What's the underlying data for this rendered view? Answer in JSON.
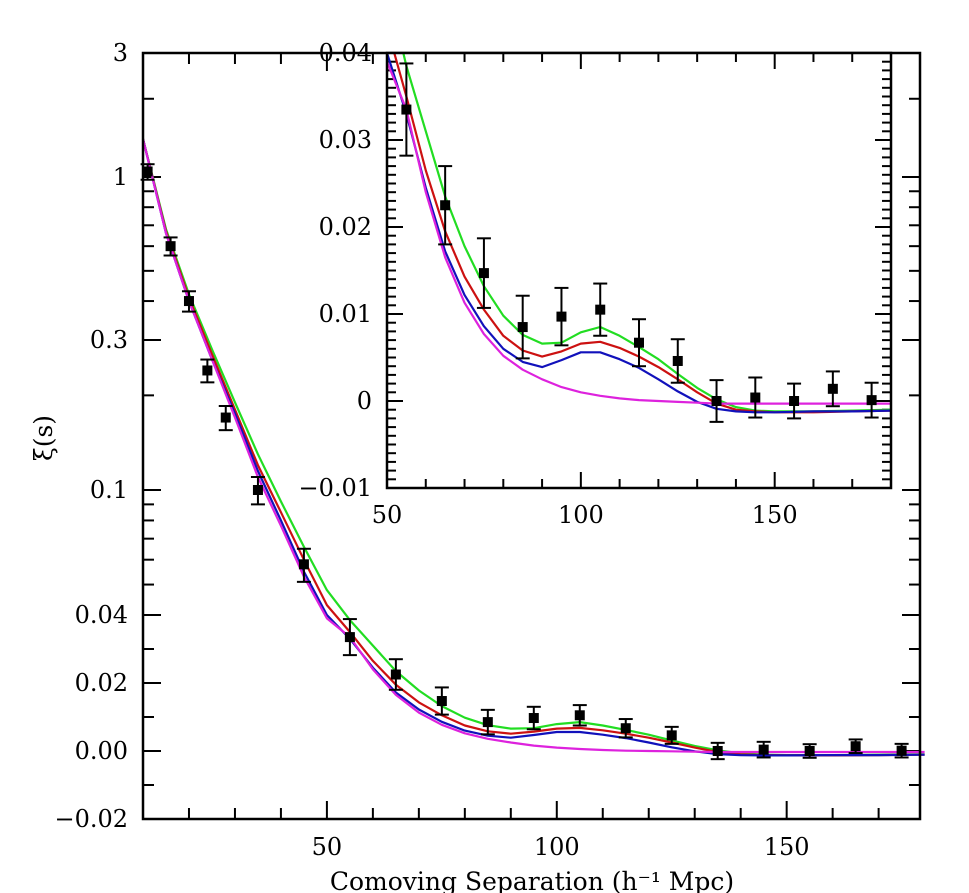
{
  "chart_data": [
    {
      "id": "main",
      "type": "line",
      "title": "",
      "xlabel": "Comoving Separation (h⁻¹ Mpc)",
      "ylabel": "ξ(s)",
      "xlim": [
        10,
        179
      ],
      "y_scale": "asinh-like (log above 0.04, linear below)",
      "x_ticks": [
        50,
        100,
        150
      ],
      "x_tick_labels": [
        "50",
        "100",
        "150"
      ],
      "y_ticks": [
        3,
        1,
        0.3,
        0.1,
        0.04,
        0.02,
        0.0,
        -0.02
      ],
      "y_tick_labels": [
        "3",
        "1",
        "0.3",
        "0.1",
        "0.04",
        "0.02",
        "0.00",
        "−0.02"
      ],
      "grid": false,
      "legend": "none",
      "data_points": {
        "name": "measured",
        "marker": "filled-square",
        "color": "#000000",
        "x": [
          11,
          16,
          20,
          24,
          28,
          35,
          45,
          55,
          65,
          75,
          85,
          95,
          105,
          115,
          125,
          135,
          145,
          155,
          165,
          175
        ],
        "y": [
          1.05,
          0.6,
          0.4,
          0.24,
          0.17,
          0.1,
          0.058,
          0.0335,
          0.0225,
          0.0147,
          0.0085,
          0.0097,
          0.0105,
          0.0067,
          0.0046,
          0.0,
          0.0004,
          0.0,
          0.0014,
          0.0001
        ],
        "err": [
          0.07,
          0.04,
          0.03,
          0.02,
          0.015,
          0.01,
          0.007,
          0.0053,
          0.0045,
          0.004,
          0.0036,
          0.0033,
          0.003,
          0.0027,
          0.0025,
          0.0024,
          0.0023,
          0.002,
          0.002,
          0.002
        ]
      },
      "series": [
        {
          "name": "model-green",
          "color": "#22dd22",
          "x": [
            10,
            15,
            20,
            25,
            30,
            35,
            40,
            45,
            50,
            55,
            60,
            65,
            70,
            75,
            80,
            85,
            90,
            95,
            100,
            105,
            110,
            115,
            120,
            125,
            130,
            135,
            140,
            145,
            150,
            160,
            170,
            180
          ],
          "y": [
            1.4,
            0.68,
            0.42,
            0.28,
            0.19,
            0.13,
            0.092,
            0.066,
            0.048,
            0.0385,
            0.031,
            0.0235,
            0.0178,
            0.0132,
            0.0098,
            0.0076,
            0.0066,
            0.0067,
            0.0079,
            0.0085,
            0.0075,
            0.0062,
            0.0048,
            0.0031,
            0.0015,
            0.0002,
            -0.0007,
            -0.0011,
            -0.0012,
            -0.0012,
            -0.0011,
            -0.001
          ]
        },
        {
          "name": "model-red",
          "color": "#cc1111",
          "x": [
            10,
            15,
            20,
            25,
            30,
            35,
            40,
            45,
            50,
            55,
            60,
            65,
            70,
            75,
            80,
            85,
            90,
            95,
            100,
            105,
            110,
            115,
            120,
            125,
            130,
            135,
            140,
            145,
            150,
            160,
            170,
            180
          ],
          "y": [
            1.4,
            0.67,
            0.41,
            0.27,
            0.18,
            0.12,
            0.085,
            0.06,
            0.043,
            0.035,
            0.0265,
            0.0195,
            0.0143,
            0.0105,
            0.0075,
            0.0058,
            0.0051,
            0.0057,
            0.0066,
            0.0068,
            0.0061,
            0.0051,
            0.0039,
            0.0025,
            0.001,
            -0.0003,
            -0.001,
            -0.0012,
            -0.0013,
            -0.0013,
            -0.0012,
            -0.0011
          ]
        },
        {
          "name": "model-blue",
          "color": "#1111bb",
          "x": [
            10,
            15,
            20,
            25,
            30,
            35,
            40,
            45,
            50,
            55,
            60,
            65,
            70,
            75,
            80,
            85,
            90,
            95,
            100,
            105,
            110,
            115,
            120,
            125,
            130,
            135,
            140,
            145,
            150,
            160,
            170,
            180
          ],
          "y": [
            1.4,
            0.66,
            0.4,
            0.26,
            0.175,
            0.115,
            0.08,
            0.055,
            0.04,
            0.033,
            0.0245,
            0.0172,
            0.0122,
            0.0086,
            0.006,
            0.0045,
            0.0039,
            0.0047,
            0.0056,
            0.0056,
            0.0048,
            0.0038,
            0.0025,
            0.0011,
            -0.0001,
            -0.0009,
            -0.0012,
            -0.0013,
            -0.0013,
            -0.0012,
            -0.0012,
            -0.0011
          ]
        },
        {
          "name": "model-magenta",
          "color": "#dd22dd",
          "x": [
            10,
            15,
            20,
            25,
            30,
            35,
            40,
            45,
            50,
            55,
            60,
            65,
            70,
            75,
            80,
            85,
            90,
            95,
            100,
            105,
            110,
            115,
            120,
            125,
            130,
            135,
            140,
            145,
            150,
            160,
            170,
            180
          ],
          "y": [
            1.4,
            0.66,
            0.4,
            0.26,
            0.17,
            0.11,
            0.077,
            0.053,
            0.039,
            0.0335,
            0.024,
            0.0165,
            0.0113,
            0.0077,
            0.0052,
            0.0036,
            0.0025,
            0.0016,
            0.001,
            0.0006,
            0.0003,
            0.0001,
            0.0,
            -0.0001,
            -0.0002,
            -0.0003,
            -0.0003,
            -0.0003,
            -0.0003,
            -0.0003,
            -0.0003,
            -0.0003
          ]
        }
      ]
    },
    {
      "id": "inset",
      "type": "line",
      "xlim": [
        50,
        180
      ],
      "ylim": [
        -0.01,
        0.04
      ],
      "x_ticks": [
        50,
        100,
        150
      ],
      "x_tick_labels": [
        "50",
        "100",
        "150"
      ],
      "y_ticks": [
        0.04,
        0.03,
        0.02,
        0.01,
        0,
        -0.01
      ],
      "y_tick_labels": [
        "0.04",
        "0.03",
        "0.02",
        "0.01",
        "0",
        "−0.01"
      ],
      "note": "zoom of main panel, same series and data points"
    }
  ]
}
